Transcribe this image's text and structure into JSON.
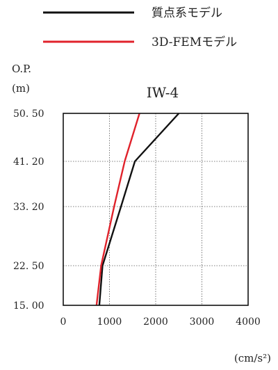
{
  "chart_data": {
    "type": "line",
    "title": "IW-4",
    "y_axis_title": "O.P.",
    "y_axis_unit": "(m)",
    "x_unit": "(cm/s²)",
    "xlim": [
      0,
      4000
    ],
    "x_ticks": [
      0,
      1000,
      2000,
      3000,
      4000
    ],
    "x_tick_labels": [
      "0",
      "1000",
      "2000",
      "3000",
      "4000"
    ],
    "y_levels": [
      50.5,
      41.2,
      33.2,
      22.5,
      15.0
    ],
    "y_tick_labels": [
      "50. 50",
      "41. 20",
      "33. 20",
      "22. 50",
      "15. 00"
    ],
    "grid": true,
    "legend_position": "top",
    "series": [
      {
        "name": "質点系モデル",
        "color": "#111111",
        "points": [
          [
            2500,
            50.5
          ],
          [
            1550,
            41.2
          ],
          [
            1250,
            33.2
          ],
          [
            850,
            22.5
          ],
          [
            780,
            15.0
          ]
        ]
      },
      {
        "name": "3D-FEMモデル",
        "color": "#e0222b",
        "points": [
          [
            1650,
            50.5
          ],
          [
            1330,
            41.2
          ],
          [
            1100,
            33.2
          ],
          [
            820,
            22.5
          ],
          [
            720,
            15.0
          ]
        ]
      }
    ]
  }
}
